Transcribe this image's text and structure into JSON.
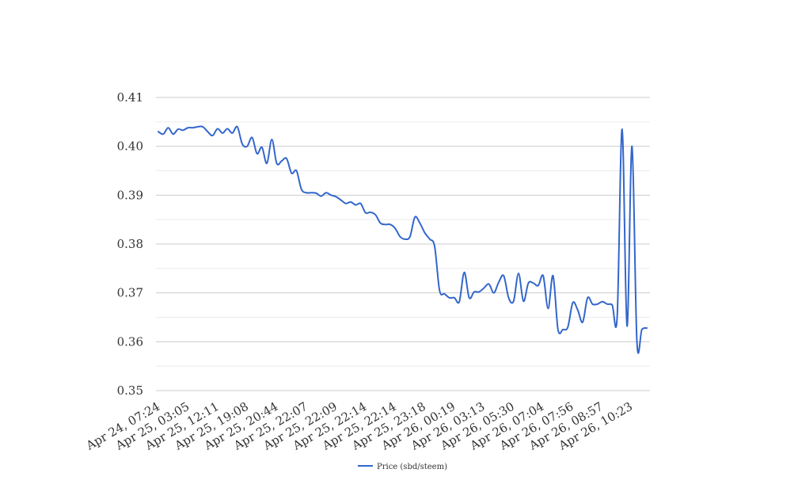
{
  "chart_data": {
    "type": "line",
    "title": "",
    "xlabel": "",
    "ylabel": "",
    "ylim": [
      0.35,
      0.41
    ],
    "y_ticks": [
      "0.41",
      "0.40",
      "0.39",
      "0.38",
      "0.37",
      "0.36",
      "0.35"
    ],
    "grid": true,
    "legend_position": "bottom",
    "x_tick_labels": [
      "Apr 24, 07:24",
      "Apr 25, 03:05",
      "Apr 25, 12:11",
      "Apr 25, 19:08",
      "Apr 25, 20:44",
      "Apr 25, 22:07",
      "Apr 25, 22:09",
      "Apr 25, 22:14",
      "Apr 25, 22:14",
      "Apr 25, 23:18",
      "Apr 26, 00:19",
      "Apr 26, 03:13",
      "Apr 26, 05:30",
      "Apr 26, 07:04",
      "Apr 26, 07:56",
      "Apr 26, 08:57",
      "Apr 26, 10:23"
    ],
    "series": [
      {
        "name": "Price (sbd/steem)",
        "color": "#3366cc",
        "values": [
          0.403,
          0.4025,
          0.4038,
          0.4025,
          0.4035,
          0.4033,
          0.4038,
          0.4038,
          0.404,
          0.404,
          0.403,
          0.4022,
          0.4036,
          0.4027,
          0.4036,
          0.4027,
          0.404,
          0.4005,
          0.4,
          0.4018,
          0.3985,
          0.3998,
          0.3965,
          0.4014,
          0.3965,
          0.397,
          0.3975,
          0.3945,
          0.395,
          0.3912,
          0.3905,
          0.3905,
          0.3904,
          0.3898,
          0.3905,
          0.39,
          0.3897,
          0.389,
          0.3883,
          0.3886,
          0.388,
          0.3883,
          0.3864,
          0.3865,
          0.386,
          0.3843,
          0.384,
          0.384,
          0.3832,
          0.3815,
          0.381,
          0.3815,
          0.3855,
          0.3843,
          0.3823,
          0.381,
          0.3795,
          0.3705,
          0.3698,
          0.369,
          0.369,
          0.3682,
          0.3742,
          0.369,
          0.3702,
          0.3702,
          0.371,
          0.3718,
          0.37,
          0.3722,
          0.3735,
          0.369,
          0.3683,
          0.374,
          0.3683,
          0.372,
          0.372,
          0.3715,
          0.3735,
          0.3668,
          0.3735,
          0.3625,
          0.3625,
          0.363,
          0.368,
          0.3665,
          0.364,
          0.369,
          0.3677,
          0.3677,
          0.3682,
          0.3677,
          0.3675,
          0.3652,
          0.4035,
          0.3632,
          0.4,
          0.36,
          0.3625,
          0.3628
        ]
      }
    ]
  }
}
